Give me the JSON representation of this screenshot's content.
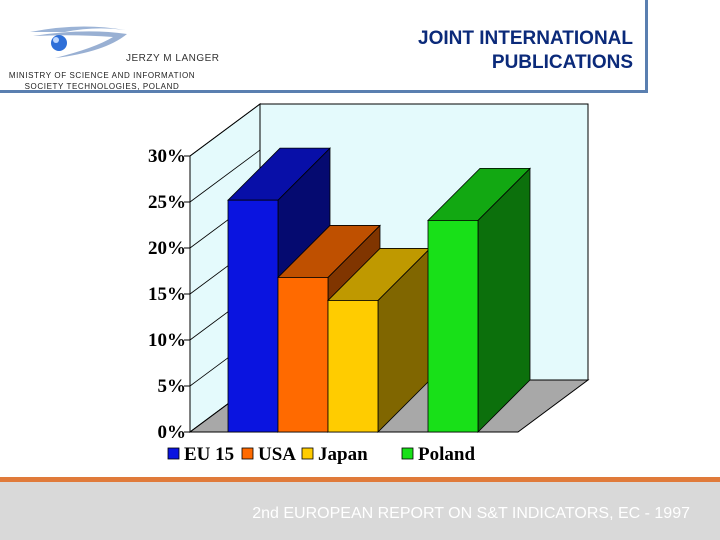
{
  "header": {
    "author": "JERZY M LANGER",
    "ministry": "MINISTRY OF SCIENCE AND INFORMATION SOCIETY TECHNOLOGIES,  POLAND",
    "title": "JOINT INTERNATIONAL PUBLICATIONS"
  },
  "footer": {
    "text": "2nd EUROPEAN REPORT ON S&T INDICATORS, EC - 1997"
  },
  "chart_data": {
    "type": "bar",
    "style": "3d",
    "categories": [
      "EU 15",
      "USA",
      "Japan",
      "Poland"
    ],
    "values": [
      25.2,
      16.8,
      14.3,
      23.0
    ],
    "unit": "%",
    "ylim": [
      0,
      30
    ],
    "yticks": [
      "0%",
      "5%",
      "10%",
      "15%",
      "20%",
      "25%",
      "30%"
    ],
    "legend_position": "bottom",
    "grid": false,
    "colors": {
      "EU 15": "#0a14e0",
      "USA": "#ff6a00",
      "Japan": "#ffcc00",
      "Poland": "#18e018"
    },
    "wall_color": "#e4fafc",
    "floor_color": "#a8a8a8"
  }
}
